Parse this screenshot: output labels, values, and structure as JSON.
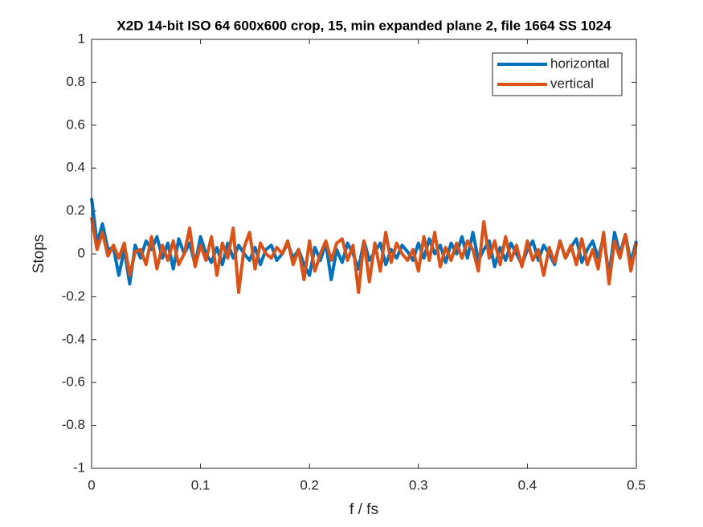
{
  "chart_data": {
    "type": "line",
    "title": "X2D 14-bit ISO 64 600x600 crop, 15, min expanded plane 2, file 1664 SS 1024",
    "xlabel": "f / fs",
    "ylabel": "Stops",
    "x": [
      0,
      0.005,
      0.01,
      0.015,
      0.02,
      0.025,
      0.03,
      0.035,
      0.04,
      0.045,
      0.05,
      0.055,
      0.06,
      0.065,
      0.07,
      0.075,
      0.08,
      0.085,
      0.09,
      0.095,
      0.1,
      0.105,
      0.11,
      0.115,
      0.12,
      0.125,
      0.13,
      0.135,
      0.14,
      0.145,
      0.15,
      0.155,
      0.16,
      0.165,
      0.17,
      0.175,
      0.18,
      0.185,
      0.19,
      0.195,
      0.2,
      0.205,
      0.21,
      0.215,
      0.22,
      0.225,
      0.23,
      0.235,
      0.24,
      0.245,
      0.25,
      0.255,
      0.26,
      0.265,
      0.27,
      0.275,
      0.28,
      0.285,
      0.29,
      0.295,
      0.3,
      0.305,
      0.31,
      0.315,
      0.32,
      0.325,
      0.33,
      0.335,
      0.34,
      0.345,
      0.35,
      0.355,
      0.36,
      0.365,
      0.37,
      0.375,
      0.38,
      0.385,
      0.39,
      0.395,
      0.4,
      0.405,
      0.41,
      0.415,
      0.42,
      0.425,
      0.43,
      0.435,
      0.44,
      0.445,
      0.45,
      0.455,
      0.46,
      0.465,
      0.47,
      0.475,
      0.48,
      0.485,
      0.49,
      0.495,
      0.5
    ],
    "series": [
      {
        "name": "horizontal",
        "color": "#0072bd",
        "values": [
          0.26,
          0.05,
          0.14,
          0.02,
          0.03,
          -0.1,
          0.02,
          -0.14,
          0.04,
          -0.02,
          0.06,
          0.02,
          0.08,
          -0.02,
          0.05,
          -0.07,
          0.07,
          0.0,
          0.05,
          -0.05,
          0.08,
          0.0,
          -0.04,
          0.03,
          -0.05,
          0.05,
          -0.02,
          0.04,
          0.0,
          -0.03,
          0.03,
          -0.05,
          0.02,
          0.04,
          -0.03,
          0.0,
          0.05,
          -0.02,
          0.02,
          -0.05,
          -0.1,
          0.03,
          -0.03,
          0.05,
          -0.12,
          0.02,
          -0.04,
          0.05,
          0.0,
          -0.07,
          0.06,
          -0.03,
          0.01,
          0.05,
          -0.05,
          0.02,
          -0.02,
          0.04,
          0.01,
          -0.03,
          0.05,
          -0.02,
          0.07,
          0.0,
          0.04,
          -0.04,
          0.05,
          0.0,
          0.08,
          -0.02,
          0.1,
          -0.03,
          0.02,
          0.06,
          -0.06,
          0.03,
          -0.03,
          0.05,
          0.0,
          -0.05,
          0.02,
          0.06,
          -0.03,
          0.04,
          0.0,
          -0.05,
          0.06,
          -0.02,
          0.03,
          0.07,
          -0.04,
          0.02,
          0.06,
          -0.02,
          0.08,
          -0.1,
          0.1,
          0.0,
          0.09,
          -0.04,
          0.06
        ]
      },
      {
        "name": "vertical",
        "color": "#d95319",
        "values": [
          0.17,
          0.02,
          0.1,
          -0.01,
          0.04,
          -0.02,
          0.05,
          -0.1,
          0.01,
          0.02,
          -0.05,
          0.08,
          -0.07,
          0.04,
          -0.03,
          0.06,
          -0.05,
          0.0,
          0.12,
          -0.06,
          0.04,
          -0.03,
          0.08,
          -0.1,
          0.05,
          -0.02,
          0.12,
          -0.18,
          0.03,
          0.1,
          -0.07,
          0.05,
          0.0,
          -0.02,
          0.03,
          0.0,
          0.06,
          -0.05,
          0.02,
          -0.12,
          0.06,
          -0.08,
          0.0,
          0.06,
          -0.03,
          0.05,
          0.07,
          -0.03,
          0.04,
          -0.18,
          0.06,
          -0.13,
          0.05,
          -0.08,
          0.1,
          -0.04,
          0.05,
          0.0,
          -0.03,
          0.02,
          -0.08,
          0.08,
          -0.03,
          0.1,
          -0.06,
          0.03,
          -0.03,
          0.05,
          -0.02,
          0.06,
          0.02,
          -0.08,
          0.15,
          -0.02,
          0.06,
          -0.05,
          0.08,
          -0.03,
          0.04,
          -0.06,
          0.06,
          -0.03,
          0.02,
          -0.1,
          0.03,
          -0.04,
          0.06,
          -0.02,
          0.04,
          -0.05,
          0.07,
          -0.05,
          0.02,
          -0.07,
          0.1,
          -0.14,
          0.06,
          -0.02,
          0.09,
          -0.08,
          0.05
        ]
      }
    ],
    "xlim": [
      0,
      0.5
    ],
    "xticks": [
      0,
      0.1,
      0.2,
      0.3,
      0.4,
      0.5
    ],
    "ylim": [
      -1,
      1
    ],
    "yticks": [
      -1,
      -0.8,
      -0.6,
      -0.4,
      -0.2,
      0,
      0.2,
      0.4,
      0.6,
      0.8,
      1
    ],
    "grid": false,
    "legend": "northeast"
  }
}
